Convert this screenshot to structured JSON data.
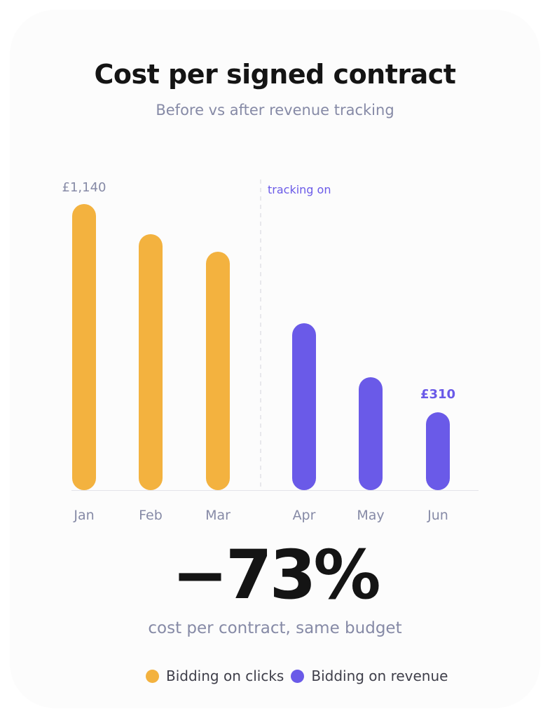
{
  "title": "Cost per signed contract",
  "subtitle": "Before vs after revenue tracking",
  "chart_data": {
    "type": "bar",
    "title": "Cost per signed contract",
    "subtitle": "Before vs after revenue tracking",
    "categories": [
      "Jan",
      "Feb",
      "Mar",
      "Apr",
      "May",
      "Jun"
    ],
    "series": [
      {
        "name": "Bidding on clicks",
        "color": "#f3b23f",
        "values": [
          1140,
          1020,
          950,
          null,
          null,
          null
        ]
      },
      {
        "name": "Bidding on revenue",
        "color": "#6a5ae8",
        "values": [
          null,
          null,
          null,
          665,
          450,
          310
        ]
      }
    ],
    "data_labels": [
      {
        "category": "Jan",
        "text": "£1,140",
        "color": "#868aa6"
      },
      {
        "category": "Jun",
        "text": "£310",
        "color": "#6a5ae8"
      }
    ],
    "annotation": {
      "text": "tracking on",
      "after_category": "Mar",
      "color": "#6a5ae8"
    },
    "ylim": [
      0,
      1140
    ],
    "grid": false,
    "legend": "bottom"
  },
  "headline": {
    "value": "−73%",
    "caption": "cost per contract, same budget"
  },
  "legend": [
    {
      "label": "Bidding on clicks",
      "color": "#f3b23f"
    },
    {
      "label": "Bidding on revenue",
      "color": "#6a5ae8"
    }
  ]
}
